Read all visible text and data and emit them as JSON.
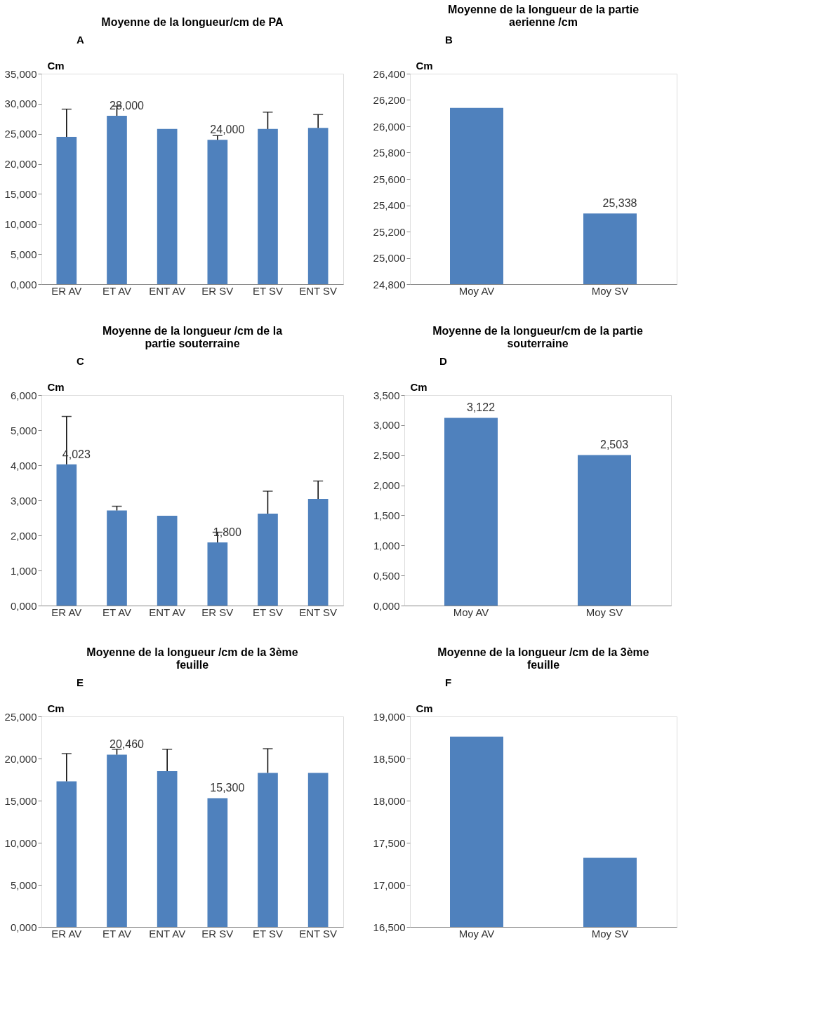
{
  "chart_data": [
    {
      "type": "bar",
      "title": "Moyenne de la longueur/cm de PA",
      "ylabel": "Cm",
      "annotations": [
        "A"
      ],
      "categories": [
        "ER AV",
        "ET AV",
        "ENT AV",
        "ER SV",
        "ET SV",
        "ENT SV"
      ],
      "values": [
        24.5,
        28.0,
        25.8,
        24.0,
        25.8,
        26.0
      ],
      "errors": [
        [
          24.5,
          29.1
        ],
        [
          28.0,
          29.6
        ],
        null,
        [
          24.0,
          24.7
        ],
        [
          25.8,
          28.6
        ],
        [
          26.0,
          28.2
        ]
      ],
      "value_labels": [
        null,
        "28,000",
        null,
        "24,000",
        null,
        null
      ],
      "color": "#4f81bd",
      "ylim": [
        0,
        35
      ],
      "yticks": [
        {
          "value": 0,
          "label": "0,000"
        },
        {
          "value": 5,
          "label": "5,000"
        },
        {
          "value": 10,
          "label": "10,000"
        },
        {
          "value": 15,
          "label": "15,000"
        },
        {
          "value": 20,
          "label": "20,000"
        },
        {
          "value": 25,
          "label": "25,000"
        },
        {
          "value": 30,
          "label": "30,000"
        },
        {
          "value": 35,
          "label": "35,000"
        }
      ],
      "grid": false
    },
    {
      "type": "bar",
      "title": "Moyenne de la longueur de la partie aerienne /cm",
      "ylabel": "Cm",
      "annotations": [
        "B"
      ],
      "categories": [
        "Moy AV",
        "Moy SV"
      ],
      "values": [
        26.14,
        25.338
      ],
      "value_labels": [
        null,
        "25,338"
      ],
      "color": "#4f81bd",
      "ylim": [
        24.8,
        26.4
      ],
      "yticks": [
        {
          "value": 24.8,
          "label": "24,800"
        },
        {
          "value": 25.0,
          "label": "25,000"
        },
        {
          "value": 25.2,
          "label": "25,200"
        },
        {
          "value": 25.4,
          "label": "25,400"
        },
        {
          "value": 25.6,
          "label": "25,600"
        },
        {
          "value": 25.8,
          "label": "25,800"
        },
        {
          "value": 26.0,
          "label": "26,000"
        },
        {
          "value": 26.2,
          "label": "26,200"
        },
        {
          "value": 26.4,
          "label": "26,400"
        }
      ],
      "grid": false
    },
    {
      "type": "bar",
      "title": "Moyenne de la longueur /cm de la partie souterraine",
      "ylabel": "Cm",
      "annotations": [
        "C"
      ],
      "categories": [
        "ER AV",
        "ET AV",
        "ENT AV",
        "ER SV",
        "ET SV",
        "ENT SV"
      ],
      "values": [
        4.023,
        2.71,
        2.56,
        1.8,
        2.62,
        3.04
      ],
      "errors": [
        [
          4.023,
          5.39
        ],
        [
          2.71,
          2.83
        ],
        null,
        [
          1.8,
          2.09
        ],
        [
          2.62,
          3.26
        ],
        [
          3.04,
          3.55
        ]
      ],
      "value_labels": [
        "4,023",
        null,
        null,
        "1,800",
        null,
        null
      ],
      "color": "#4f81bd",
      "ylim": [
        0,
        6
      ],
      "yticks": [
        {
          "value": 0,
          "label": "0,000"
        },
        {
          "value": 1,
          "label": "1,000"
        },
        {
          "value": 2,
          "label": "2,000"
        },
        {
          "value": 3,
          "label": "3,000"
        },
        {
          "value": 4,
          "label": "4,000"
        },
        {
          "value": 5,
          "label": "5,000"
        },
        {
          "value": 6,
          "label": "6,000"
        }
      ],
      "grid": false
    },
    {
      "type": "bar",
      "title": "Moyenne de la longueur/cm de la partie souterraine",
      "ylabel": "Cm",
      "annotations": [
        "D"
      ],
      "categories": [
        "Moy AV",
        "Moy SV"
      ],
      "values": [
        3.122,
        2.503
      ],
      "value_labels": [
        "3,122",
        "2,503"
      ],
      "color": "#4f81bd",
      "ylim": [
        0,
        3.5
      ],
      "yticks": [
        {
          "value": 0,
          "label": "0,000"
        },
        {
          "value": 0.5,
          "label": "0,500"
        },
        {
          "value": 1.0,
          "label": "1,000"
        },
        {
          "value": 1.5,
          "label": "1,500"
        },
        {
          "value": 2.0,
          "label": "2,000"
        },
        {
          "value": 2.5,
          "label": "2,500"
        },
        {
          "value": 3.0,
          "label": "3,000"
        },
        {
          "value": 3.5,
          "label": "3,500"
        }
      ],
      "grid": false
    },
    {
      "type": "bar",
      "title": "Moyenne de la longueur /cm de la 3ème feuille",
      "ylabel": "Cm",
      "annotations": [
        "E"
      ],
      "categories": [
        "ER AV",
        "ET AV",
        "ENT AV",
        "ER SV",
        "ET SV",
        "ENT SV"
      ],
      "values": [
        17.3,
        20.46,
        18.5,
        15.3,
        18.3,
        18.3
      ],
      "errors": [
        [
          17.3,
          20.59
        ],
        [
          20.46,
          21.1
        ],
        [
          18.5,
          21.1
        ],
        null,
        [
          18.3,
          21.17
        ],
        null
      ],
      "value_labels": [
        null,
        "20,460",
        null,
        "15,300",
        null,
        null
      ],
      "color": "#4f81bd",
      "ylim": [
        0,
        25
      ],
      "yticks": [
        {
          "value": 0,
          "label": "0,000"
        },
        {
          "value": 5,
          "label": "5,000"
        },
        {
          "value": 10,
          "label": "10,000"
        },
        {
          "value": 15,
          "label": "15,000"
        },
        {
          "value": 20,
          "label": "20,000"
        },
        {
          "value": 25,
          "label": "25,000"
        }
      ],
      "grid": false
    },
    {
      "type": "bar",
      "title": "Moyenne de la longueur /cm de la 3ème feuille",
      "ylabel": "Cm",
      "annotations": [
        "F"
      ],
      "categories": [
        "Moy AV",
        "Moy SV"
      ],
      "values": [
        18.76,
        17.32
      ],
      "color": "#4f81bd",
      "ylim": [
        16.5,
        19
      ],
      "yticks": [
        {
          "value": 16.5,
          "label": "16,500"
        },
        {
          "value": 17.0,
          "label": "17,000"
        },
        {
          "value": 17.5,
          "label": "17,500"
        },
        {
          "value": 18.0,
          "label": "18,000"
        },
        {
          "value": 18.5,
          "label": "18,500"
        },
        {
          "value": 19.0,
          "label": "19,000"
        }
      ],
      "grid": false
    }
  ]
}
